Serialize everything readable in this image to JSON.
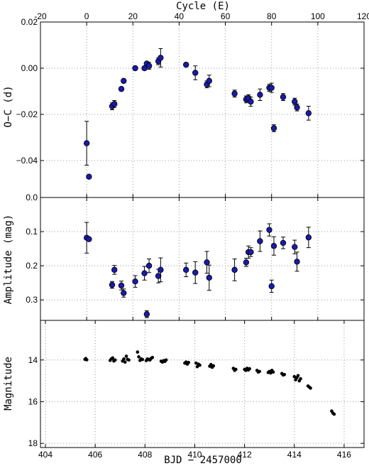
{
  "chart_data": [
    {
      "type": "scatter",
      "panel": "oc",
      "xlabel": "Cycle (E)",
      "ylabel": "O−C (d)",
      "xlim": [
        -20,
        120
      ],
      "ylim": [
        0.02,
        -0.056
      ],
      "x_ticks": [
        -20,
        0,
        20,
        40,
        60,
        80,
        100,
        120
      ],
      "y_ticks": [
        0.02,
        0.0,
        -0.02,
        -0.04
      ],
      "y_tick_labels": [
        "0.02",
        "0.00",
        "−0.02",
        "−0.04"
      ],
      "grid": true,
      "marker_color": "#1a1aaa",
      "points": [
        {
          "x": 0,
          "y": -0.0325,
          "err": 0.0095
        },
        {
          "x": 1,
          "y": -0.047,
          "err": 0
        },
        {
          "x": 11,
          "y": -0.0165,
          "err": 0.0015
        },
        {
          "x": 12,
          "y": -0.0155,
          "err": 0.0015
        },
        {
          "x": 15,
          "y": -0.009,
          "err": 0
        },
        {
          "x": 16,
          "y": -0.0055,
          "err": 0
        },
        {
          "x": 21,
          "y": 0.0,
          "err": 0
        },
        {
          "x": 25,
          "y": 0.0,
          "err": 0
        },
        {
          "x": 26,
          "y": 0.002,
          "err": 0
        },
        {
          "x": 27,
          "y": 0.001,
          "err": 0.0015
        },
        {
          "x": 31,
          "y": 0.003,
          "err": 0.0015
        },
        {
          "x": 32,
          "y": 0.0045,
          "err": 0.004
        },
        {
          "x": 43,
          "y": 0.0015,
          "err": 0
        },
        {
          "x": 47,
          "y": -0.002,
          "err": 0.003
        },
        {
          "x": 52,
          "y": -0.007,
          "err": 0.0015
        },
        {
          "x": 53,
          "y": -0.0055,
          "err": 0.0025
        },
        {
          "x": 64,
          "y": -0.011,
          "err": 0.0015
        },
        {
          "x": 69,
          "y": -0.0135,
          "err": 0.0015
        },
        {
          "x": 70,
          "y": -0.013,
          "err": 0.0015
        },
        {
          "x": 71,
          "y": -0.0145,
          "err": 0.002
        },
        {
          "x": 75,
          "y": -0.0115,
          "err": 0.0025
        },
        {
          "x": 79,
          "y": -0.0085,
          "err": 0.0015
        },
        {
          "x": 80,
          "y": -0.0085,
          "err": 0.002
        },
        {
          "x": 81,
          "y": -0.026,
          "err": 0.0015
        },
        {
          "x": 85,
          "y": -0.0125,
          "err": 0.0015
        },
        {
          "x": 90,
          "y": -0.0145,
          "err": 0.0015
        },
        {
          "x": 91,
          "y": -0.017,
          "err": 0.0015
        },
        {
          "x": 96,
          "y": -0.0195,
          "err": 0.003
        }
      ]
    },
    {
      "type": "scatter",
      "panel": "amp",
      "xlabel": "",
      "ylabel": "Amplitude (mag)",
      "ylim": [
        0.0,
        0.36
      ],
      "y_ticks": [
        0.0,
        0.1,
        0.2,
        0.3
      ],
      "y_tick_labels": [
        "0.0",
        "0.1",
        "0.2",
        "0.3"
      ],
      "grid": true,
      "marker_color": "#1a1aaa",
      "points": [
        {
          "x": 0,
          "y": 0.118,
          "err": 0.045
        },
        {
          "x": 1,
          "y": 0.122,
          "err": 0
        },
        {
          "x": 11,
          "y": 0.256,
          "err": 0.01
        },
        {
          "x": 12,
          "y": 0.212,
          "err": 0.013
        },
        {
          "x": 15,
          "y": 0.258,
          "err": 0.013
        },
        {
          "x": 16,
          "y": 0.28,
          "err": 0.012
        },
        {
          "x": 21,
          "y": 0.246,
          "err": 0.017
        },
        {
          "x": 25,
          "y": 0.222,
          "err": 0.02
        },
        {
          "x": 26,
          "y": 0.342,
          "err": 0.01
        },
        {
          "x": 27,
          "y": 0.2,
          "err": 0.02
        },
        {
          "x": 31,
          "y": 0.23,
          "err": 0.02
        },
        {
          "x": 32,
          "y": 0.212,
          "err": 0.035
        },
        {
          "x": 43,
          "y": 0.212,
          "err": 0.02
        },
        {
          "x": 47,
          "y": 0.22,
          "err": 0.032
        },
        {
          "x": 52,
          "y": 0.19,
          "err": 0.032
        },
        {
          "x": 53,
          "y": 0.235,
          "err": 0.037
        },
        {
          "x": 64,
          "y": 0.212,
          "err": 0.032
        },
        {
          "x": 69,
          "y": 0.19,
          "err": 0.012
        },
        {
          "x": 70,
          "y": 0.16,
          "err": 0.018
        },
        {
          "x": 71,
          "y": 0.16,
          "err": 0.013
        },
        {
          "x": 75,
          "y": 0.128,
          "err": 0.03
        },
        {
          "x": 79,
          "y": 0.095,
          "err": 0.018
        },
        {
          "x": 80,
          "y": 0.26,
          "err": 0.018
        },
        {
          "x": 81,
          "y": 0.142,
          "err": 0.027
        },
        {
          "x": 85,
          "y": 0.133,
          "err": 0.017
        },
        {
          "x": 90,
          "y": 0.145,
          "err": 0.02
        },
        {
          "x": 91,
          "y": 0.188,
          "err": 0.028
        },
        {
          "x": 96,
          "y": 0.117,
          "err": 0.03
        }
      ]
    },
    {
      "type": "scatter",
      "panel": "mag",
      "xlabel": "BJD − 2457000",
      "ylabel": "Magnitude",
      "xlim": [
        403.8,
        416.8
      ],
      "ylim": [
        12.1,
        18.2
      ],
      "x_ticks": [
        404,
        406,
        408,
        410,
        412,
        414,
        416
      ],
      "y_ticks": [
        14,
        16,
        18
      ],
      "y_tick_labels": [
        "14",
        "16",
        "18"
      ],
      "grid": true,
      "marker_color": "#000000",
      "points": [
        [
          405.59,
          13.97
        ],
        [
          405.62,
          13.93
        ],
        [
          405.66,
          13.99
        ],
        [
          406.6,
          14.02
        ],
        [
          406.65,
          13.95
        ],
        [
          406.7,
          13.9
        ],
        [
          406.75,
          14.05
        ],
        [
          406.8,
          14.0
        ],
        [
          407.1,
          14.05
        ],
        [
          407.15,
          13.95
        ],
        [
          407.2,
          14.1
        ],
        [
          407.25,
          13.82
        ],
        [
          407.3,
          13.97
        ],
        [
          407.35,
          14.0
        ],
        [
          407.7,
          13.62
        ],
        [
          407.75,
          13.85
        ],
        [
          407.8,
          14.02
        ],
        [
          407.85,
          13.95
        ],
        [
          407.9,
          13.98
        ],
        [
          408.05,
          14.03
        ],
        [
          408.1,
          13.95
        ],
        [
          408.15,
          13.98
        ],
        [
          408.2,
          14.0
        ],
        [
          408.25,
          13.92
        ],
        [
          408.3,
          13.88
        ],
        [
          408.65,
          14.06
        ],
        [
          408.7,
          14.1
        ],
        [
          408.75,
          14.03
        ],
        [
          408.8,
          14.07
        ],
        [
          408.85,
          14.0
        ],
        [
          409.6,
          14.15
        ],
        [
          409.65,
          14.1
        ],
        [
          409.7,
          14.2
        ],
        [
          409.75,
          14.12
        ],
        [
          410.05,
          14.15
        ],
        [
          410.1,
          14.32
        ],
        [
          410.15,
          14.2
        ],
        [
          410.2,
          14.25
        ],
        [
          410.6,
          14.3
        ],
        [
          410.65,
          14.22
        ],
        [
          410.7,
          14.35
        ],
        [
          410.75,
          14.28
        ],
        [
          411.55,
          14.4
        ],
        [
          411.6,
          14.5
        ],
        [
          411.65,
          14.45
        ],
        [
          412.0,
          14.45
        ],
        [
          412.05,
          14.5
        ],
        [
          412.1,
          14.4
        ],
        [
          412.15,
          14.48
        ],
        [
          412.2,
          14.42
        ],
        [
          412.5,
          14.5
        ],
        [
          412.55,
          14.58
        ],
        [
          412.6,
          14.55
        ],
        [
          412.95,
          14.6
        ],
        [
          413.0,
          14.55
        ],
        [
          413.05,
          14.62
        ],
        [
          413.1,
          14.5
        ],
        [
          413.15,
          14.58
        ],
        [
          413.5,
          14.65
        ],
        [
          413.55,
          14.72
        ],
        [
          413.6,
          14.7
        ],
        [
          414.0,
          14.8
        ],
        [
          414.05,
          14.95
        ],
        [
          414.1,
          14.85
        ],
        [
          414.15,
          14.75
        ],
        [
          414.2,
          15.0
        ],
        [
          414.25,
          14.9
        ],
        [
          414.55,
          15.25
        ],
        [
          414.6,
          15.3
        ],
        [
          414.65,
          15.35
        ],
        [
          415.5,
          16.45
        ],
        [
          415.55,
          16.55
        ],
        [
          415.6,
          16.6
        ]
      ]
    }
  ]
}
